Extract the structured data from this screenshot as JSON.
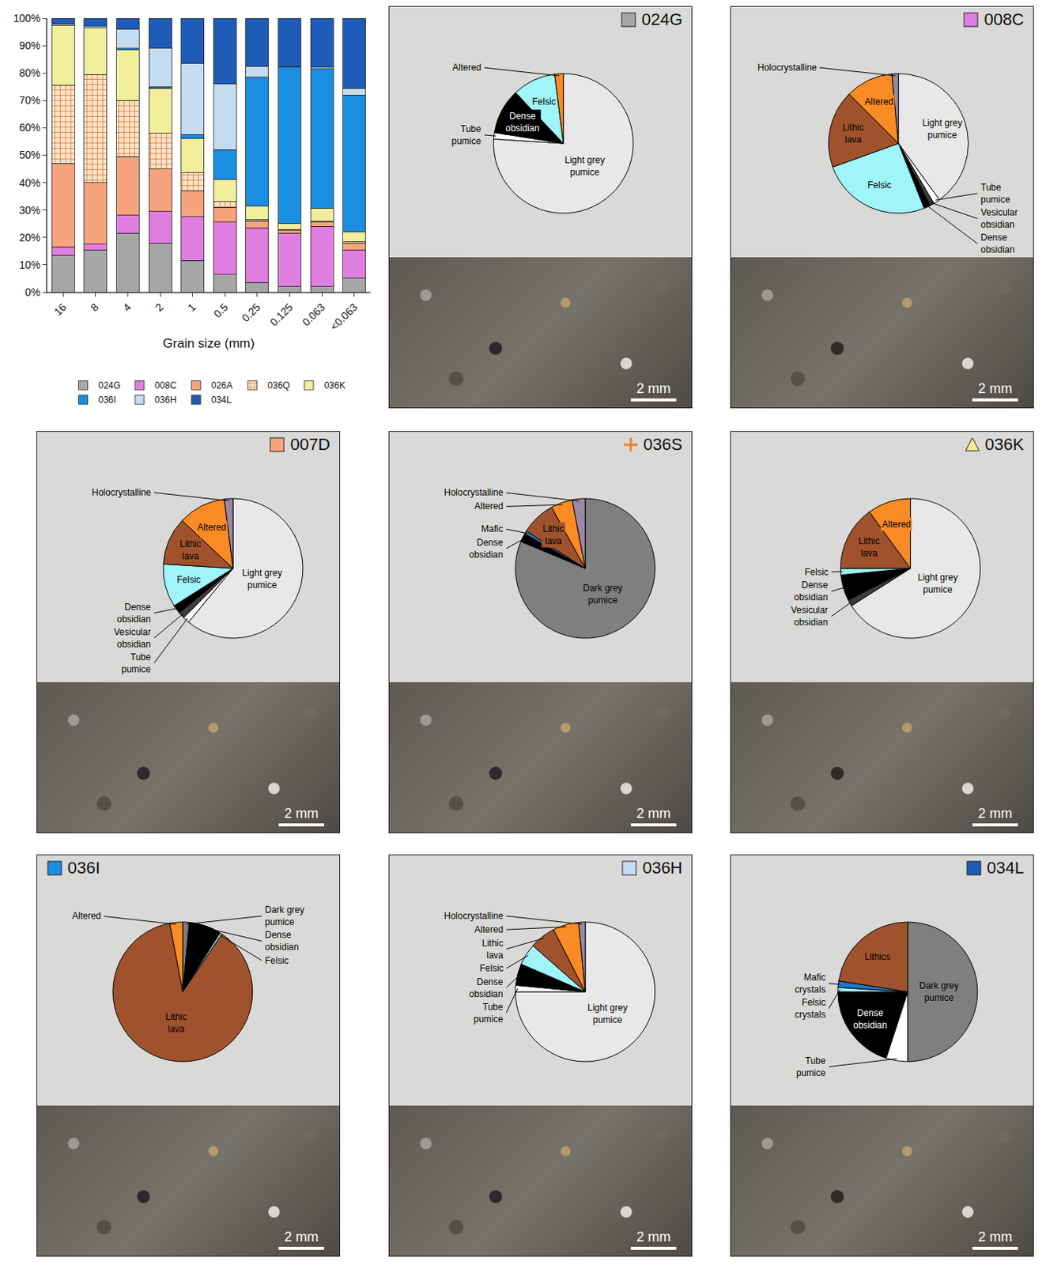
{
  "chart_data": [
    {
      "type": "bar",
      "stacked": true,
      "grid": false,
      "legend": "bottom",
      "xlabel": "Grain size (mm)",
      "categories": [
        "16",
        "8",
        "4",
        "2",
        "1",
        "0.5",
        "0.25",
        "0.125",
        "0.063",
        "<0.063"
      ],
      "ylim": [
        0,
        100
      ],
      "yticks": [
        {
          "value": 0,
          "label": "0%"
        },
        {
          "value": 10,
          "label": "10%"
        },
        {
          "value": 20,
          "label": "20%"
        },
        {
          "value": 30,
          "label": "30%"
        },
        {
          "value": 40,
          "label": "40%"
        },
        {
          "value": 50,
          "label": "50%"
        },
        {
          "value": 60,
          "label": "60%"
        },
        {
          "value": 70,
          "label": "70%"
        },
        {
          "value": 80,
          "label": "80%"
        },
        {
          "value": 90,
          "label": "90%"
        },
        {
          "value": 100,
          "label": "100%"
        }
      ],
      "series": [
        {
          "name": "024G",
          "color": "#a6a6a6",
          "values": [
            13.5,
            15.5,
            21.5,
            18,
            11.5,
            6.5,
            3.5,
            2,
            2,
            5
          ]
        },
        {
          "name": "008C",
          "color": "#e07ee0",
          "values": [
            3,
            2,
            6.5,
            11.5,
            16,
            19,
            20,
            19.5,
            22,
            10.5
          ]
        },
        {
          "name": "026A",
          "color": "#f7a47e",
          "values": [
            30.5,
            22.5,
            21.5,
            15.5,
            9.5,
            5.5,
            2.5,
            1,
            1.5,
            2.5
          ]
        },
        {
          "name": "036Q",
          "color": "#fde3cc",
          "marker": "grid",
          "values": [
            28.5,
            39.5,
            20.5,
            13,
            6.5,
            2,
            0.5,
            0.3,
            0.3,
            0.3
          ]
        },
        {
          "name": "036K",
          "color": "#f1ee9c",
          "values": [
            22,
            17,
            18.5,
            16.5,
            12.5,
            8,
            5,
            2.2,
            4.7,
            3.7
          ]
        },
        {
          "name": "036I",
          "color": "#1a8ee0",
          "values": [
            0,
            0,
            0.5,
            0.5,
            1.5,
            11,
            47,
            57,
            51,
            50
          ]
        },
        {
          "name": "036H",
          "color": "#c4dcef",
          "values": [
            0.5,
            0.5,
            7,
            14,
            26,
            24,
            4,
            0.5,
            0.5,
            2.5
          ]
        },
        {
          "name": "034L",
          "color": "#1f5cb8",
          "values": [
            2,
            3,
            4,
            11,
            16.5,
            24,
            17.5,
            17.5,
            18,
            25.5
          ]
        }
      ]
    },
    {
      "type": "pie",
      "title": "024G",
      "marker": "square",
      "color": "#a6a6a6",
      "annotations": [
        "2 mm"
      ],
      "categories": [
        "Light grey pumice",
        "Tube pumice",
        "Dense obsidian",
        "Felsic",
        "Altered"
      ],
      "values": [
        76,
        1.5,
        10.5,
        10,
        2
      ],
      "colors": [
        "#e8e8e8",
        "#ffffff",
        "#000000",
        "#9ff5fa",
        "#fb8b24"
      ]
    },
    {
      "type": "pie",
      "title": "008C",
      "marker": "square",
      "color": "#e07ee0",
      "annotations": [
        "2 mm"
      ],
      "categories": [
        "Light grey pumice",
        "Tube pumice",
        "Vesicular obsidian",
        "Dense obsidian",
        "Felsic",
        "Lithic lava",
        "Altered",
        "Holocrystalline"
      ],
      "values": [
        40,
        1.5,
        1,
        1.5,
        25.5,
        18,
        11,
        1.5
      ],
      "colors": [
        "#e8e8e8",
        "#ffffff",
        "#3d3d3d",
        "#000000",
        "#9ff5fa",
        "#a0522d",
        "#fb8b24",
        "#9b88a6"
      ]
    },
    {
      "type": "pie",
      "title": "007D",
      "marker": "square",
      "color": "#f7a47e",
      "annotations": [
        "2 mm"
      ],
      "categories": [
        "Light grey pumice",
        "Tube pumice",
        "Vesicular obsidian",
        "Dense obsidian",
        "Felsic",
        "Lithic lava",
        "Altered",
        "Holocrystalline"
      ],
      "values": [
        61,
        1.5,
        1.5,
        2,
        10,
        11,
        11,
        2
      ],
      "colors": [
        "#e8e8e8",
        "#ffffff",
        "#3d3d3d",
        "#000000",
        "#9ff5fa",
        "#a0522d",
        "#fb8b24",
        "#9b88a6"
      ]
    },
    {
      "type": "pie",
      "title": "036S",
      "marker": "plus",
      "color": "#f07f2a",
      "annotations": [
        "2 mm"
      ],
      "categories": [
        "Dark grey pumice",
        "Dense obsidian",
        "Mafic",
        "Lithic lava",
        "Altered",
        "Holocrystalline"
      ],
      "values": [
        81.3,
        2,
        0.7,
        8,
        5,
        3
      ],
      "colors": [
        "#7f7f7f",
        "#000000",
        "#1f78c8",
        "#a0522d",
        "#fb8b24",
        "#9b88a6"
      ]
    },
    {
      "type": "pie",
      "title": "036K",
      "marker": "triangle",
      "color": "#f1ee9c",
      "annotations": [
        "2 mm"
      ],
      "categories": [
        "Light grey pumice",
        "Vesicular obsidian",
        "Dense obsidian",
        "Felsic",
        "Lithic lava",
        "Altered"
      ],
      "values": [
        66,
        1.5,
        6,
        1.5,
        15,
        10
      ],
      "colors": [
        "#e8e8e8",
        "#3d3d3d",
        "#000000",
        "#9ff5fa",
        "#a0522d",
        "#fb8b24"
      ]
    },
    {
      "type": "pie",
      "title": "036I",
      "marker": "square",
      "color": "#1a8ee0",
      "annotations": [
        "2 mm"
      ],
      "categories": [
        "Dark grey pumice",
        "Dense obsidian",
        "Felsic",
        "Lithic lava",
        "Altered"
      ],
      "values": [
        1.5,
        7.5,
        0.5,
        87.5,
        3
      ],
      "colors": [
        "#7f7f7f",
        "#000000",
        "#9ff5fa",
        "#a0522d",
        "#fb8b24"
      ]
    },
    {
      "type": "pie",
      "title": "036H",
      "marker": "square",
      "color": "#c4dcef",
      "annotations": [
        "2 mm"
      ],
      "categories": [
        "Light grey pumice",
        "Tube pumice",
        "Dense obsidian",
        "Felsic",
        "Lithic lava",
        "Altered",
        "Holocrystalline"
      ],
      "values": [
        75,
        1.5,
        5,
        5,
        6,
        6,
        1.5
      ],
      "colors": [
        "#e8e8e8",
        "#ffffff",
        "#000000",
        "#9ff5fa",
        "#a0522d",
        "#fb8b24",
        "#9b88a6"
      ]
    },
    {
      "type": "pie",
      "title": "034L",
      "marker": "square",
      "color": "#1f5cb8",
      "annotations": [
        "2 mm"
      ],
      "categories": [
        "Dark grey pumice",
        "Tube pumice",
        "Dense obsidian",
        "Felsic crystals",
        "Mafic crystals",
        "Lithics"
      ],
      "values": [
        50,
        5,
        20,
        1,
        1.5,
        22.5
      ],
      "colors": [
        "#7f7f7f",
        "#ffffff",
        "#000000",
        "#9ff5fa",
        "#1f78c8",
        "#a0522d"
      ]
    }
  ]
}
